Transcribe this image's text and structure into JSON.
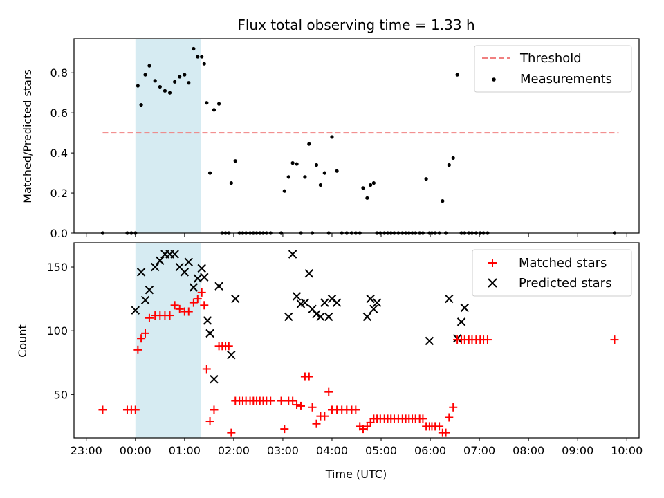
{
  "chart_data": [
    {
      "type": "scatter",
      "title": "Flux total observing time = 1.33 h",
      "xlabel": "",
      "ylabel": "Matched/Predicted stars",
      "ylim": [
        0,
        0.97
      ],
      "yticks": [
        0.0,
        0.2,
        0.4,
        0.6,
        0.8
      ],
      "ytick_labels": [
        "0.0",
        "0.2",
        "0.4",
        "0.6",
        "0.8"
      ],
      "xlim_hours": [
        -1.25,
        10.25
      ],
      "highlight_span": {
        "start": "00:00",
        "end": "01:20",
        "color": "#add8e6"
      },
      "legend": {
        "location": "upper right",
        "entries": [
          "Threshold",
          "Measurements"
        ]
      },
      "series": [
        {
          "name": "Threshold",
          "style": "dashed-line",
          "color": "#f08080",
          "x": [
            "23:20",
            "09:50"
          ],
          "y": [
            0.5,
            0.5
          ]
        },
        {
          "name": "Measurements",
          "style": "dot",
          "color": "#000000",
          "x": [
            "23:20",
            "23:50",
            "23:55",
            "00:00",
            "00:03",
            "00:07",
            "00:12",
            "00:17",
            "00:24",
            "00:30",
            "00:36",
            "00:42",
            "00:48",
            "00:54",
            "01:00",
            "01:05",
            "01:11",
            "01:16",
            "01:21",
            "01:24",
            "01:27",
            "01:31",
            "01:36",
            "01:42",
            "01:46",
            "01:50",
            "01:54",
            "01:57",
            "02:02",
            "02:07",
            "02:11",
            "02:15",
            "02:20",
            "02:24",
            "02:28",
            "02:32",
            "02:36",
            "02:40",
            "02:45",
            "02:58",
            "03:02",
            "03:07",
            "03:12",
            "03:17",
            "03:22",
            "03:27",
            "03:32",
            "03:36",
            "03:41",
            "03:46",
            "03:51",
            "03:56",
            "04:00",
            "04:06",
            "04:12",
            "04:18",
            "04:24",
            "04:29",
            "04:34",
            "04:38",
            "04:43",
            "04:47",
            "04:51",
            "04:55",
            "04:59",
            "05:04",
            "05:08",
            "05:12",
            "05:16",
            "05:21",
            "05:26",
            "05:30",
            "05:34",
            "05:38",
            "05:42",
            "05:47",
            "05:51",
            "05:55",
            "05:59",
            "06:02",
            "06:06",
            "06:11",
            "06:15",
            "06:19",
            "06:23",
            "06:28",
            "06:33",
            "06:38",
            "06:42",
            "06:47",
            "06:51",
            "06:56",
            "07:01",
            "07:05",
            "07:10",
            "09:45"
          ],
          "y": [
            0.0,
            0.0,
            0.0,
            0.0,
            0.735,
            0.64,
            0.79,
            0.835,
            0.76,
            0.73,
            0.71,
            0.7,
            0.755,
            0.78,
            0.79,
            0.75,
            0.92,
            0.88,
            0.88,
            0.845,
            0.65,
            0.3,
            0.615,
            0.645,
            0.0,
            0.0,
            0.0,
            0.25,
            0.36,
            0.0,
            0.0,
            0.0,
            0.0,
            0.0,
            0.0,
            0.0,
            0.0,
            0.0,
            0.0,
            0.0,
            0.21,
            0.28,
            0.35,
            0.345,
            0.0,
            0.28,
            0.445,
            0.0,
            0.34,
            0.24,
            0.3,
            0.0,
            0.48,
            0.31,
            0.0,
            0.0,
            0.0,
            0.0,
            0.0,
            0.225,
            0.175,
            0.24,
            0.25,
            0.0,
            0.0,
            0.0,
            0.0,
            0.0,
            0.0,
            0.0,
            0.0,
            0.0,
            0.0,
            0.0,
            0.0,
            0.0,
            0.0,
            0.27,
            0.0,
            0.0,
            0.0,
            0.0,
            0.16,
            0.0,
            0.34,
            0.375,
            0.79,
            0.0,
            0.0,
            0.0,
            0.0,
            0.0,
            0.0,
            0.0,
            0.0,
            0.0
          ]
        }
      ]
    },
    {
      "type": "scatter",
      "title": "",
      "xlabel": "Time (UTC)",
      "ylabel": "Count",
      "ylim": [
        16,
        169
      ],
      "yticks": [
        50,
        100,
        150
      ],
      "ytick_labels": [
        "50",
        "100",
        "150"
      ],
      "xlim_hours": [
        -1.25,
        10.25
      ],
      "xticks": [
        "23:00",
        "00:00",
        "01:00",
        "02:00",
        "03:00",
        "04:00",
        "05:00",
        "06:00",
        "07:00",
        "08:00",
        "09:00",
        "10:00"
      ],
      "highlight_span": {
        "start": "00:00",
        "end": "01:20",
        "color": "#add8e6"
      },
      "legend": {
        "location": "upper right",
        "entries": [
          "Matched stars",
          "Predicted stars"
        ]
      },
      "series": [
        {
          "name": "Matched stars",
          "marker": "+",
          "color": "#ff0000",
          "x": [
            "23:20",
            "23:50",
            "23:55",
            "00:00",
            "00:03",
            "00:07",
            "00:12",
            "00:17",
            "00:24",
            "00:30",
            "00:36",
            "00:42",
            "00:48",
            "00:54",
            "01:00",
            "01:05",
            "01:11",
            "01:16",
            "01:21",
            "01:24",
            "01:27",
            "01:31",
            "01:36",
            "01:42",
            "01:46",
            "01:50",
            "01:54",
            "01:57",
            "02:02",
            "02:07",
            "02:11",
            "02:15",
            "02:20",
            "02:24",
            "02:28",
            "02:32",
            "02:36",
            "02:40",
            "02:45",
            "02:58",
            "03:02",
            "03:07",
            "03:12",
            "03:17",
            "03:22",
            "03:27",
            "03:32",
            "03:36",
            "03:41",
            "03:46",
            "03:51",
            "03:56",
            "04:00",
            "04:06",
            "04:12",
            "04:18",
            "04:24",
            "04:29",
            "04:34",
            "04:38",
            "04:43",
            "04:47",
            "04:51",
            "04:55",
            "04:59",
            "05:04",
            "05:08",
            "05:12",
            "05:16",
            "05:21",
            "05:26",
            "05:30",
            "05:34",
            "05:38",
            "05:42",
            "05:47",
            "05:51",
            "05:55",
            "05:59",
            "06:02",
            "06:06",
            "06:11",
            "06:15",
            "06:19",
            "06:23",
            "06:28",
            "06:33",
            "06:38",
            "06:42",
            "06:47",
            "06:51",
            "06:56",
            "07:01",
            "07:05",
            "07:10",
            "09:45"
          ],
          "y": [
            38,
            38,
            38,
            38,
            85,
            94,
            98,
            110,
            112,
            112,
            112,
            112,
            120,
            117,
            115,
            115,
            122,
            125,
            130,
            120,
            70,
            29,
            38,
            88,
            88,
            88,
            88,
            20,
            45,
            45,
            45,
            45,
            45,
            45,
            45,
            45,
            45,
            45,
            45,
            45,
            23,
            45,
            45,
            42,
            41,
            64,
            64,
            40,
            27,
            33,
            33,
            52,
            38,
            38,
            38,
            38,
            38,
            38,
            25,
            23,
            25,
            28,
            31,
            31,
            31,
            31,
            31,
            31,
            31,
            31,
            31,
            31,
            31,
            31,
            31,
            31,
            31,
            25,
            25,
            25,
            25,
            25,
            20,
            20,
            32,
            40,
            93,
            93,
            93,
            93,
            93,
            93,
            93,
            93,
            93,
            93
          ]
        },
        {
          "name": "Predicted stars",
          "marker": "x",
          "color": "#000000",
          "x": [
            "00:00",
            "00:07",
            "00:12",
            "00:17",
            "00:24",
            "00:30",
            "00:36",
            "00:42",
            "00:48",
            "00:54",
            "01:00",
            "01:05",
            "01:11",
            "01:16",
            "01:21",
            "01:24",
            "01:28",
            "01:31",
            "01:36",
            "01:42",
            "01:57",
            "02:02",
            "03:07",
            "03:12",
            "03:17",
            "03:22",
            "03:27",
            "03:32",
            "03:36",
            "03:41",
            "03:46",
            "03:51",
            "03:56",
            "04:00",
            "04:06",
            "04:43",
            "04:47",
            "04:51",
            "04:55",
            "05:59",
            "06:23",
            "06:33",
            "06:38",
            "06:42"
          ],
          "y": [
            116,
            146,
            124,
            132,
            150,
            155,
            160,
            160,
            160,
            150,
            146,
            154,
            134,
            141,
            149,
            142,
            108,
            98,
            62,
            135,
            81,
            125,
            111,
            160,
            127,
            121,
            122,
            145,
            117,
            113,
            111,
            122,
            111,
            125,
            122,
            111,
            125,
            117,
            122,
            92,
            125,
            94,
            107,
            118
          ]
        }
      ]
    }
  ]
}
